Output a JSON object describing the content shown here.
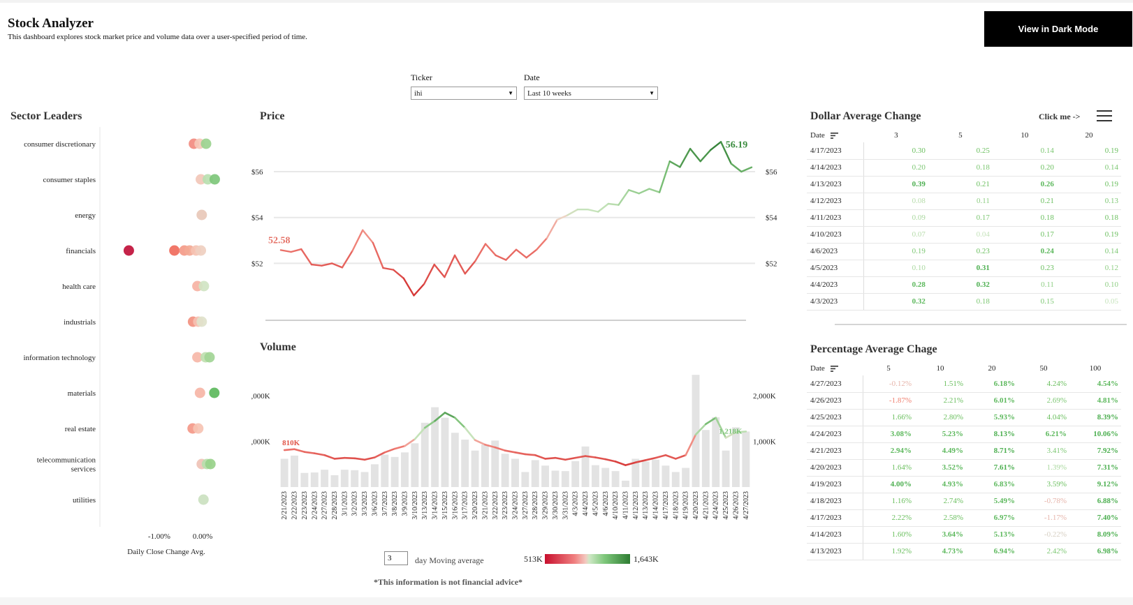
{
  "header": {
    "title": "Stock Analyzer",
    "subtitle": "This dashboard explores stock market price and volume data over a user-specified period of time.",
    "dark_mode_button": "View in Dark Mode"
  },
  "filters": {
    "ticker_label": "Ticker",
    "ticker_value": "ihi",
    "date_label": "Date",
    "date_value": "Last 10 weeks"
  },
  "sector_leaders": {
    "title": "Sector Leaders",
    "axis_label": "Daily Close Change Avg.",
    "tick_labels": [
      "-1.00%",
      "0.00%"
    ],
    "sectors": [
      {
        "name": "consumer discretionary",
        "points": [
          {
            "v": -0.2,
            "c": "#f28b80"
          },
          {
            "v": -0.07,
            "c": "#f6c8b8"
          },
          {
            "v": 0.08,
            "c": "#9bd38f"
          }
        ]
      },
      {
        "name": "consumer staples",
        "points": [
          {
            "v": -0.04,
            "c": "#f2c7b8"
          },
          {
            "v": 0.12,
            "c": "#b9dfb0"
          },
          {
            "v": 0.28,
            "c": "#7ec77b"
          }
        ]
      },
      {
        "name": "energy",
        "points": [
          {
            "v": -0.02,
            "c": "#e8c8b8"
          }
        ]
      },
      {
        "name": "financials",
        "points": [
          {
            "v": -1.7,
            "c": "#c0103a"
          },
          {
            "v": -0.65,
            "c": "#f06b5c"
          },
          {
            "v": -0.42,
            "c": "#f49a88"
          },
          {
            "v": -0.3,
            "c": "#f3a995"
          },
          {
            "v": -0.15,
            "c": "#f5c2b2"
          },
          {
            "v": -0.04,
            "c": "#efcfc0"
          }
        ]
      },
      {
        "name": "health care",
        "points": [
          {
            "v": -0.12,
            "c": "#f6b2a3"
          },
          {
            "v": 0.03,
            "c": "#d0e4c3"
          }
        ]
      },
      {
        "name": "industrials",
        "points": [
          {
            "v": -0.22,
            "c": "#f29180"
          },
          {
            "v": -0.1,
            "c": "#f6c1b2"
          },
          {
            "v": -0.02,
            "c": "#dfe2cb"
          }
        ]
      },
      {
        "name": "information technology",
        "points": [
          {
            "v": -0.12,
            "c": "#f6b7a8"
          },
          {
            "v": 0.07,
            "c": "#bfe0b0"
          },
          {
            "v": 0.16,
            "c": "#a2d596"
          }
        ]
      },
      {
        "name": "materials",
        "points": [
          {
            "v": -0.06,
            "c": "#f6b5a6"
          },
          {
            "v": 0.27,
            "c": "#5cb85c"
          }
        ]
      },
      {
        "name": "real estate",
        "points": [
          {
            "v": -0.23,
            "c": "#f49888"
          },
          {
            "v": -0.1,
            "c": "#f6c3b3"
          }
        ]
      },
      {
        "name": "telecommunication services",
        "points": [
          {
            "v": -0.02,
            "c": "#efc2b6"
          },
          {
            "v": 0.1,
            "c": "#b8deac"
          },
          {
            "v": 0.18,
            "c": "#98d18a"
          }
        ]
      },
      {
        "name": "utilities",
        "points": [
          {
            "v": 0.02,
            "c": "#cbe1c0"
          }
        ]
      }
    ]
  },
  "price_chart": {
    "title": "Price",
    "start_label": "52.58",
    "end_label": "56.19",
    "axis_ticks": [
      "$56",
      "$54",
      "$52"
    ]
  },
  "volume_chart": {
    "title": "Volume",
    "start_label": "810K",
    "end_label": "1,218K",
    "axis_ticks": [
      "2,000K",
      "1,000K"
    ]
  },
  "chart_data": [
    {
      "type": "line",
      "title": "Price",
      "x": [
        "2/21/2023",
        "2/22/2023",
        "2/23/2023",
        "2/24/2023",
        "2/27/2023",
        "2/28/2023",
        "3/1/2023",
        "3/2/2023",
        "3/3/2023",
        "3/6/2023",
        "3/7/2023",
        "3/8/2023",
        "3/9/2023",
        "3/10/2023",
        "3/13/2023",
        "3/14/2023",
        "3/15/2023",
        "3/16/2023",
        "3/17/2023",
        "3/20/2023",
        "3/21/2023",
        "3/22/2023",
        "3/23/2023",
        "3/24/2023",
        "3/27/2023",
        "3/28/2023",
        "3/29/2023",
        "3/30/2023",
        "3/31/2023",
        "4/3/2023",
        "4/4/2023",
        "4/5/2023",
        "4/6/2023",
        "4/10/2023",
        "4/11/2023",
        "4/12/2023",
        "4/13/2023",
        "4/14/2023",
        "4/17/2023",
        "4/18/2023",
        "4/19/2023",
        "4/20/2023",
        "4/21/2023",
        "4/24/2023",
        "4/25/2023",
        "4/26/2023",
        "4/27/2023"
      ],
      "values": [
        52.58,
        52.5,
        52.62,
        51.95,
        51.9,
        52.0,
        51.82,
        52.55,
        53.45,
        52.9,
        51.8,
        51.72,
        51.35,
        50.6,
        51.1,
        51.95,
        51.4,
        52.35,
        51.55,
        52.1,
        52.85,
        52.35,
        52.15,
        52.6,
        52.25,
        52.6,
        53.1,
        53.9,
        54.1,
        54.35,
        54.35,
        54.25,
        54.6,
        54.55,
        55.2,
        55.05,
        55.25,
        55.1,
        56.45,
        56.2,
        57.0,
        56.45,
        56.95,
        57.3,
        56.35,
        56.0,
        56.19
      ],
      "ylim": [
        50.4,
        57.4
      ],
      "y_ticks": [
        52,
        54,
        56
      ]
    },
    {
      "type": "bar",
      "title": "Volume",
      "categories": [
        "2/21/2023",
        "2/22/2023",
        "2/23/2023",
        "2/24/2023",
        "2/27/2023",
        "2/28/2023",
        "3/1/2023",
        "3/2/2023",
        "3/3/2023",
        "3/6/2023",
        "3/7/2023",
        "3/8/2023",
        "3/9/2023",
        "3/10/2023",
        "3/13/2023",
        "3/14/2023",
        "3/15/2023",
        "3/16/2023",
        "3/17/2023",
        "3/20/2023",
        "3/21/2023",
        "3/22/2023",
        "3/23/2023",
        "3/24/2023",
        "3/27/2023",
        "3/28/2023",
        "3/29/2023",
        "3/30/2023",
        "3/31/2023",
        "4/3/2023",
        "4/4/2023",
        "4/5/2023",
        "4/6/2023",
        "4/10/2023",
        "4/11/2023",
        "4/12/2023",
        "4/13/2023",
        "4/14/2023",
        "4/17/2023",
        "4/18/2023",
        "4/19/2023",
        "4/20/2023",
        "4/21/2023",
        "4/24/2023",
        "4/25/2023",
        "4/26/2023",
        "4/27/2023"
      ],
      "values": [
        620,
        690,
        310,
        320,
        380,
        260,
        380,
        370,
        330,
        500,
        710,
        660,
        760,
        960,
        1410,
        1750,
        1520,
        1190,
        1040,
        800,
        930,
        1020,
        730,
        620,
        330,
        590,
        470,
        360,
        350,
        570,
        890,
        480,
        420,
        350,
        140,
        620,
        560,
        600,
        470,
        330,
        420,
        2460,
        1250,
        1530,
        800,
        1310,
        1218
      ],
      "moving_average": [
        810,
        830,
        770,
        740,
        700,
        620,
        640,
        630,
        600,
        650,
        760,
        840,
        900,
        1050,
        1300,
        1450,
        1630,
        1520,
        1300,
        1030,
        930,
        870,
        800,
        760,
        720,
        700,
        620,
        640,
        600,
        640,
        680,
        650,
        610,
        560,
        480,
        540,
        590,
        640,
        700,
        620,
        700,
        1150,
        1380,
        1520,
        1080,
        1200,
        1218
      ],
      "ylim": [
        0,
        2600
      ],
      "y_ticks": [
        1000,
        2000
      ],
      "color_scale": {
        "min_label": "513K",
        "max_label": "1,643K"
      }
    }
  ],
  "dollar_table": {
    "title": "Dollar Average Change",
    "click_me": "Click me ->",
    "headers": [
      "Date",
      "3",
      "5",
      "10",
      "20"
    ],
    "rows": [
      {
        "date": "4/17/2023",
        "values": [
          "0.30",
          "0.25",
          "0.14",
          "0.19"
        ],
        "colors": [
          "#6abf5e",
          "#6abf5e",
          "#7cc772",
          "#6abf5e"
        ]
      },
      {
        "date": "4/14/2023",
        "values": [
          "0.20",
          "0.18",
          "0.20",
          "0.14"
        ],
        "colors": [
          "#7cc772",
          "#7cc772",
          "#6abf5e",
          "#7cc772"
        ]
      },
      {
        "date": "4/13/2023",
        "values": [
          "0.39",
          "0.21",
          "0.26",
          "0.19"
        ],
        "colors": [
          "#4caf50",
          "#6abf5e",
          "#5cb85c",
          "#6abf5e"
        ]
      },
      {
        "date": "4/12/2023",
        "values": [
          "0.08",
          "0.11",
          "0.21",
          "0.13"
        ],
        "colors": [
          "#b6dcaa",
          "#8fce84",
          "#6abf5e",
          "#7cc772"
        ]
      },
      {
        "date": "4/11/2023",
        "values": [
          "0.09",
          "0.17",
          "0.18",
          "0.18"
        ],
        "colors": [
          "#a9d89e",
          "#7cc772",
          "#6abf5e",
          "#6abf5e"
        ]
      },
      {
        "date": "4/10/2023",
        "values": [
          "0.07",
          "0.04",
          "0.17",
          "0.19"
        ],
        "colors": [
          "#b6dcaa",
          "#c5e3bb",
          "#6abf5e",
          "#6abf5e"
        ]
      },
      {
        "date": "4/6/2023",
        "values": [
          "0.19",
          "0.23",
          "0.24",
          "0.14"
        ],
        "colors": [
          "#7cc772",
          "#6abf5e",
          "#5cb85c",
          "#7cc772"
        ]
      },
      {
        "date": "4/5/2023",
        "values": [
          "0.10",
          "0.31",
          "0.23",
          "0.12"
        ],
        "colors": [
          "#a9d89e",
          "#4caf50",
          "#6abf5e",
          "#8fce84"
        ]
      },
      {
        "date": "4/4/2023",
        "values": [
          "0.28",
          "0.32",
          "0.11",
          "0.10"
        ],
        "colors": [
          "#5cb85c",
          "#4caf50",
          "#8fce84",
          "#8fce84"
        ]
      },
      {
        "date": "4/3/2023",
        "values": [
          "0.32",
          "0.18",
          "0.15",
          "0.05"
        ],
        "colors": [
          "#5cb85c",
          "#7cc772",
          "#7cc772",
          "#c5e3bb"
        ]
      }
    ]
  },
  "percent_table": {
    "title": "Percentage Average Chage",
    "headers": [
      "Date",
      "5",
      "10",
      "20",
      "50",
      "100"
    ],
    "rows": [
      {
        "date": "4/27/2023",
        "values": [
          "-0.12%",
          "1.51%",
          "6.18%",
          "4.24%",
          "4.54%"
        ],
        "colors": [
          "#e6b4aa",
          "#6abf5e",
          "#5cb85c",
          "#6abf5e",
          "#5cb85c"
        ]
      },
      {
        "date": "4/26/2023",
        "values": [
          "-1.87%",
          "2.21%",
          "6.01%",
          "2.69%",
          "4.81%"
        ],
        "colors": [
          "#f08070",
          "#6abf5e",
          "#5cb85c",
          "#7cc772",
          "#5cb85c"
        ]
      },
      {
        "date": "4/25/2023",
        "values": [
          "1.66%",
          "2.80%",
          "5.93%",
          "4.04%",
          "8.39%"
        ],
        "colors": [
          "#6abf5e",
          "#6abf5e",
          "#5cb85c",
          "#6abf5e",
          "#4caf50"
        ]
      },
      {
        "date": "4/24/2023",
        "values": [
          "3.08%",
          "5.23%",
          "8.13%",
          "6.21%",
          "10.06%"
        ],
        "colors": [
          "#5cb85c",
          "#5cb85c",
          "#4caf50",
          "#5cb85c",
          "#4caf50"
        ]
      },
      {
        "date": "4/21/2023",
        "values": [
          "2.94%",
          "4.49%",
          "8.71%",
          "3.41%",
          "7.92%"
        ],
        "colors": [
          "#5cb85c",
          "#5cb85c",
          "#4caf50",
          "#7cc772",
          "#4caf50"
        ]
      },
      {
        "date": "4/20/2023",
        "values": [
          "1.64%",
          "3.52%",
          "7.61%",
          "1.39%",
          "7.31%"
        ],
        "colors": [
          "#6abf5e",
          "#5cb85c",
          "#4caf50",
          "#a9d89e",
          "#4caf50"
        ]
      },
      {
        "date": "4/19/2023",
        "values": [
          "4.00%",
          "4.93%",
          "6.83%",
          "3.59%",
          "9.12%"
        ],
        "colors": [
          "#4caf50",
          "#5cb85c",
          "#5cb85c",
          "#6abf5e",
          "#4caf50"
        ]
      },
      {
        "date": "4/18/2023",
        "values": [
          "1.16%",
          "2.74%",
          "5.49%",
          "-0.78%",
          "6.88%"
        ],
        "colors": [
          "#6abf5e",
          "#6abf5e",
          "#5cb85c",
          "#e6b4aa",
          "#4caf50"
        ]
      },
      {
        "date": "4/17/2023",
        "values": [
          "2.22%",
          "2.58%",
          "6.97%",
          "-1.17%",
          "7.40%"
        ],
        "colors": [
          "#6abf5e",
          "#6abf5e",
          "#5cb85c",
          "#e6b4aa",
          "#4caf50"
        ]
      },
      {
        "date": "4/14/2023",
        "values": [
          "1.60%",
          "3.64%",
          "5.13%",
          "-0.22%",
          "8.09%"
        ],
        "colors": [
          "#6abf5e",
          "#5cb85c",
          "#5cb85c",
          "#d6cfc2",
          "#4caf50"
        ]
      },
      {
        "date": "4/13/2023",
        "values": [
          "1.92%",
          "4.73%",
          "6.94%",
          "2.42%",
          "6.98%"
        ],
        "colors": [
          "#6abf5e",
          "#5cb85c",
          "#5cb85c",
          "#7cc772",
          "#4caf50"
        ]
      }
    ]
  },
  "controls": {
    "moving_average_value": "3",
    "moving_average_label": "day Moving average"
  },
  "footer": {
    "disclaimer": "*This information is not financial advice*"
  },
  "colors": {
    "negative": "#d32f2f",
    "positive": "#2e7d32",
    "bar": "#e0e0e0"
  }
}
